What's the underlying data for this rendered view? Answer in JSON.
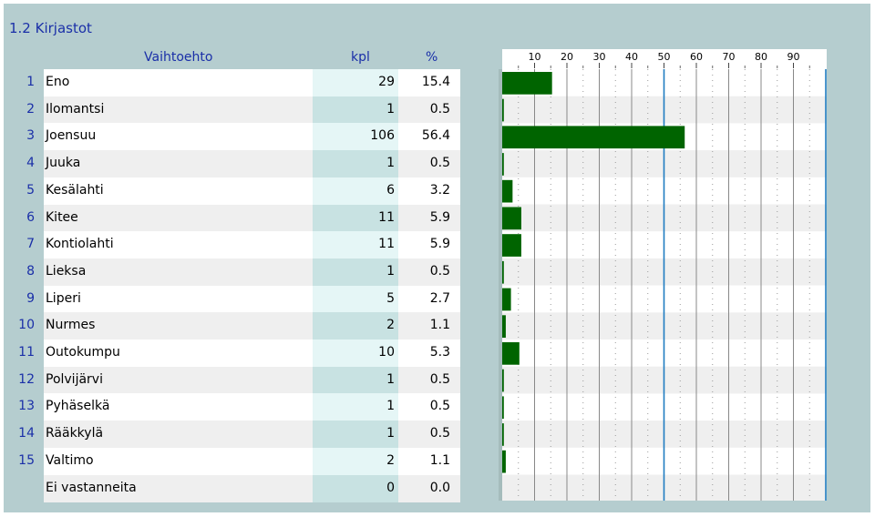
{
  "section": {
    "title": "1.2 Kirjastot"
  },
  "table": {
    "headers": {
      "option": "Vaihtoehto",
      "count": "kpl",
      "percent": "%"
    },
    "rows": [
      {
        "index": "1",
        "label": "Eno",
        "count": "29",
        "percent": "15.4"
      },
      {
        "index": "2",
        "label": "Ilomantsi",
        "count": "1",
        "percent": "0.5"
      },
      {
        "index": "3",
        "label": "Joensuu",
        "count": "106",
        "percent": "56.4"
      },
      {
        "index": "4",
        "label": "Juuka",
        "count": "1",
        "percent": "0.5"
      },
      {
        "index": "5",
        "label": "Kesälahti",
        "count": "6",
        "percent": "3.2"
      },
      {
        "index": "6",
        "label": "Kitee",
        "count": "11",
        "percent": "5.9"
      },
      {
        "index": "7",
        "label": "Kontiolahti",
        "count": "11",
        "percent": "5.9"
      },
      {
        "index": "8",
        "label": "Lieksa",
        "count": "1",
        "percent": "0.5"
      },
      {
        "index": "9",
        "label": "Liperi",
        "count": "5",
        "percent": "2.7"
      },
      {
        "index": "10",
        "label": "Nurmes",
        "count": "2",
        "percent": "1.1"
      },
      {
        "index": "11",
        "label": "Outokumpu",
        "count": "10",
        "percent": "5.3"
      },
      {
        "index": "12",
        "label": "Polvijärvi",
        "count": "1",
        "percent": "0.5"
      },
      {
        "index": "13",
        "label": "Pyhäselkä",
        "count": "1",
        "percent": "0.5"
      },
      {
        "index": "14",
        "label": "Rääkkylä",
        "count": "1",
        "percent": "0.5"
      },
      {
        "index": "15",
        "label": "Valtimo",
        "count": "2",
        "percent": "1.1"
      },
      {
        "index": "",
        "label": "Ei vastanneita",
        "count": "0",
        "percent": "0.0"
      }
    ]
  },
  "chart_data": {
    "type": "bar",
    "orientation": "horizontal",
    "categories": [
      "Eno",
      "Ilomantsi",
      "Joensuu",
      "Juuka",
      "Kesälahti",
      "Kitee",
      "Kontiolahti",
      "Lieksa",
      "Liperi",
      "Nurmes",
      "Outokumpu",
      "Polvijärvi",
      "Pyhäselkä",
      "Rääkkylä",
      "Valtimo",
      "Ei vastanneita"
    ],
    "values": [
      15.4,
      0.5,
      56.4,
      0.5,
      3.2,
      5.9,
      5.9,
      0.5,
      2.7,
      1.1,
      5.3,
      0.5,
      0.5,
      0.5,
      1.1,
      0.0
    ],
    "xlim": [
      0,
      100
    ],
    "ticks": [
      "10",
      "20",
      "30",
      "40",
      "50",
      "60",
      "70",
      "80",
      "90"
    ],
    "bar_color": "#006400",
    "accent_line_color": "#1f7cc1"
  },
  "colors": {
    "panel": "#b5cdcf",
    "title": "#1a2fa8",
    "row_white": "#ffffff",
    "row_gray": "#efefef",
    "count_col_light": "#e5f6f6",
    "count_col_dark": "#c8e2e2",
    "chart_lead": "#a5bcbc"
  }
}
